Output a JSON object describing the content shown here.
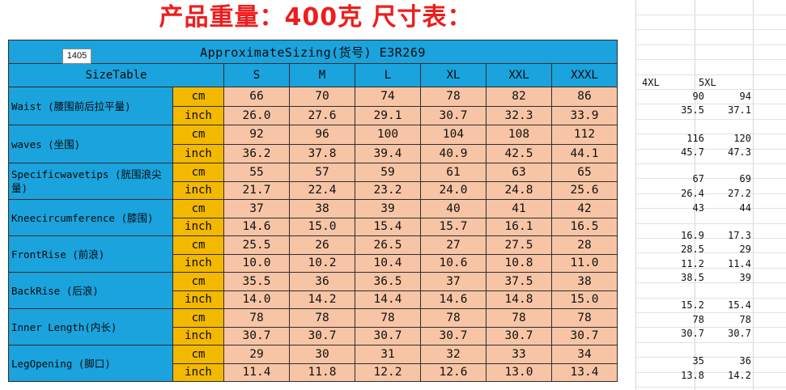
{
  "title": "产品重量：400克 尺寸表：",
  "sheet_cell_tag": "1405",
  "table_title": "ApproximateSizing(货号) E3R269",
  "size_table_label": "SizeTable",
  "sizes": [
    "S",
    "M",
    "L",
    "XL",
    "XXL",
    "XXXL"
  ],
  "measurements": [
    {
      "name": "Waist (腰围前后拉平量)",
      "cm_label": "cm",
      "inch_label": "inch",
      "cm": [
        "66",
        "70",
        "74",
        "78",
        "82",
        "86"
      ],
      "inch": [
        "26.0",
        "27.6",
        "29.1",
        "30.7",
        "32.3",
        "33.9"
      ]
    },
    {
      "name": "waves (坐围)",
      "cm_label": "cm",
      "inch_label": "inch",
      "cm": [
        "92",
        "96",
        "100",
        "104",
        "108",
        "112"
      ],
      "inch": [
        "36.2",
        "37.8",
        "39.4",
        "40.9",
        "42.5",
        "44.1"
      ]
    },
    {
      "name": "Specificwavetips (胱围浪尖量)",
      "cm_label": "cm",
      "inch_label": "inch",
      "cm": [
        "55",
        "57",
        "59",
        "61",
        "63",
        "65"
      ],
      "inch": [
        "21.7",
        "22.4",
        "23.2",
        "24.0",
        "24.8",
        "25.6"
      ]
    },
    {
      "name": "Kneecircumference (膝围)",
      "cm_label": "cm",
      "inch_label": "inch",
      "cm": [
        "37",
        "38",
        "39",
        "40",
        "41",
        "42"
      ],
      "inch": [
        "14.6",
        "15.0",
        "15.4",
        "15.7",
        "16.1",
        "16.5"
      ]
    },
    {
      "name": "FrontRise (前浪)",
      "cm_label": "cm",
      "inch_label": "inch",
      "cm": [
        "25.5",
        "26",
        "26.5",
        "27",
        "27.5",
        "28"
      ],
      "inch": [
        "10.0",
        "10.2",
        "10.4",
        "10.6",
        "10.8",
        "11.0"
      ]
    },
    {
      "name": "BackRise (后浪)",
      "cm_label": "cm",
      "inch_label": "inch",
      "cm": [
        "35.5",
        "36",
        "36.5",
        "37",
        "37.5",
        "38"
      ],
      "inch": [
        "14.0",
        "14.2",
        "14.4",
        "14.6",
        "14.8",
        "15.0"
      ]
    },
    {
      "name": "Inner Length(内长)",
      "cm_label": "cm",
      "inch_label": "inch",
      "cm": [
        "78",
        "78",
        "78",
        "78",
        "78",
        "78"
      ],
      "inch": [
        "30.7",
        "30.7",
        "30.7",
        "30.7",
        "30.7",
        "30.7"
      ]
    },
    {
      "name": "LegOpening (脚口)",
      "cm_label": "cm",
      "inch_label": "inch",
      "cm": [
        "29",
        "30",
        "31",
        "32",
        "33",
        "34"
      ],
      "inch": [
        "11.4",
        "11.8",
        "12.2",
        "12.6",
        "13.0",
        "13.4"
      ]
    }
  ],
  "extra_columns": {
    "headers": [
      "4XL",
      "5XL"
    ],
    "rows": [
      [
        "90",
        "94"
      ],
      [
        "35.5",
        "37.1"
      ],
      [
        "116",
        "120"
      ],
      [
        "45.7",
        "47.3"
      ],
      [
        "67",
        "69"
      ],
      [
        "26.4",
        "27.2"
      ],
      [
        "43",
        "44"
      ],
      [
        "16.9",
        "17.3"
      ],
      [
        "28.5",
        "29"
      ],
      [
        "11.2",
        "11.4"
      ],
      [
        "38.5",
        "39"
      ],
      [
        "15.2",
        "15.4"
      ],
      [
        "78",
        "78"
      ],
      [
        "30.7",
        "30.7"
      ],
      [
        "35",
        "36"
      ],
      [
        "13.8",
        "14.2"
      ]
    ]
  },
  "colors": {
    "title": "#ee1d1d",
    "header_blue": "#1aa3dd",
    "unit_yellow": "#f3b800",
    "value_peach": "#f7c5a5"
  }
}
